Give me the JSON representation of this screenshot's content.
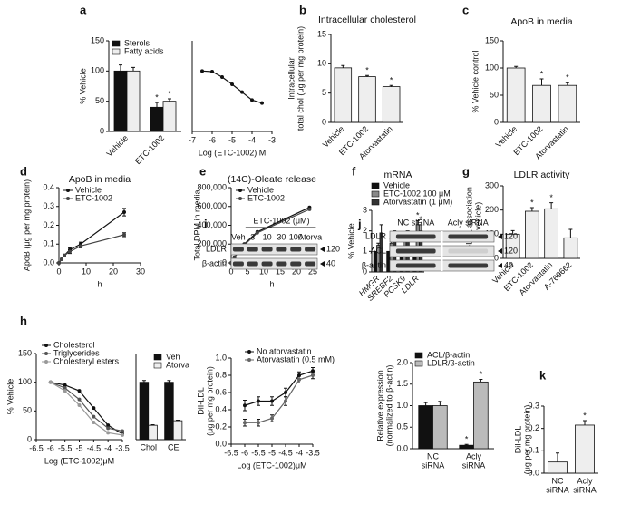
{
  "chart_data": [
    {
      "panel": "a",
      "type": "bar",
      "ylabel": "% Vehicle",
      "categories": [
        "Vehicle",
        "ETC-1002"
      ],
      "series": [
        {
          "name": "Sterols",
          "color": "#111111",
          "values": [
            100,
            40
          ],
          "errors": [
            10,
            8
          ],
          "labels": [
            null,
            "*"
          ]
        },
        {
          "name": "Fatty acids",
          "color": "#eeeeee",
          "values": [
            100,
            50
          ],
          "errors": [
            6,
            4
          ],
          "labels": [
            null,
            "*"
          ]
        }
      ],
      "ylim": [
        0,
        150
      ],
      "yticks": [
        0,
        50,
        100,
        150
      ],
      "legend": "top-left"
    },
    {
      "type": "line",
      "xlabel": "Log (ETC-1002) M",
      "x": [
        -6.5,
        -6,
        -5.5,
        -5,
        -4.5,
        -4,
        -3.5
      ],
      "series": [
        {
          "color": "#111111",
          "values": [
            100,
            99,
            90,
            78,
            65,
            52,
            47
          ]
        }
      ],
      "xlim": [
        -7,
        -3
      ],
      "xticks": [
        -7,
        -6,
        -5,
        -4,
        -3
      ],
      "ylim": [
        0,
        150
      ]
    },
    {
      "panel": "b",
      "type": "bar",
      "title": "Intracellular cholesterol",
      "ylabel": [
        "Intracellular",
        "total chol (μg per mg protein)"
      ],
      "categories": [
        "Vehicle",
        "ETC-1002",
        "Atorvastatin"
      ],
      "values": [
        9.3,
        7.8,
        6.1
      ],
      "errors": [
        0.4,
        0.2,
        0.2
      ],
      "labels": [
        null,
        "*",
        "*"
      ],
      "color": "#eeeeee",
      "ylim": [
        0,
        15
      ],
      "yticks": [
        0,
        5,
        10,
        15
      ]
    },
    {
      "panel": "c",
      "type": "bar",
      "title": "ApoB in media",
      "ylabel": "% Vehicle control",
      "categories": [
        "Vehicle",
        "ETC-1002",
        "Atorvastatin"
      ],
      "values": [
        100,
        68,
        68
      ],
      "errors": [
        3,
        12,
        5
      ],
      "labels": [
        null,
        "*",
        "*"
      ],
      "color": "#eeeeee",
      "ylim": [
        0,
        150
      ],
      "yticks": [
        0,
        50,
        100,
        150
      ]
    },
    {
      "panel": "d",
      "type": "line",
      "title": "ApoB in media",
      "ylabel": "ApoB (μg per mg protein)",
      "xlabel": "h",
      "x": [
        0,
        1,
        2,
        4,
        8,
        24
      ],
      "series": [
        {
          "name": "Vehicle",
          "color": "#111111",
          "values": [
            0,
            0.02,
            0.04,
            0.07,
            0.1,
            0.27
          ],
          "errors": [
            0,
            0,
            0,
            0.01,
            0.01,
            0.02
          ]
        },
        {
          "name": "ETC-1002",
          "color": "#444444",
          "values": [
            0,
            0.02,
            0.04,
            0.06,
            0.09,
            0.15
          ],
          "errors": [
            0,
            0,
            0,
            0.01,
            0.01,
            0.01
          ]
        }
      ],
      "xlim": [
        0,
        30
      ],
      "xticks": [
        0,
        10,
        20,
        30
      ],
      "ylim": [
        0,
        0.4
      ],
      "yticks": [
        {
          "value": 0,
          "label": "0.0"
        },
        0.1,
        0.2,
        0.3,
        0.4
      ],
      "legend": "top-left"
    },
    {
      "panel": "e",
      "type": "line",
      "title": "(14C)-Oleate release",
      "ylabel": "Total DPM in media",
      "xlabel": "h",
      "x": [
        0,
        1,
        2,
        4,
        8,
        24
      ],
      "series": [
        {
          "name": "Vehicle",
          "color": "#111111",
          "values": [
            0,
            60000,
            110000,
            200000,
            330000,
            590000
          ]
        },
        {
          "name": "ETC-1002",
          "color": "#444444",
          "values": [
            0,
            55000,
            105000,
            190000,
            320000,
            570000
          ]
        }
      ],
      "xlim": [
        0,
        25
      ],
      "xticks": [
        0,
        5,
        10,
        15,
        20,
        25
      ],
      "ylim": [
        0,
        800000
      ],
      "yticks": [
        0,
        {
          "value": 200000,
          "label": "200,000"
        },
        {
          "value": 400000,
          "label": "400,000"
        },
        {
          "value": 600000,
          "label": "600,000"
        },
        {
          "value": 800000,
          "label": "800,000"
        }
      ],
      "legend": "top-left"
    },
    {
      "panel": "f",
      "type": "bar",
      "title": "mRNA",
      "ylabel": "% Vehicle",
      "categories": [
        "HMGR",
        "SREBF2",
        "PCSK9",
        "LDLR"
      ],
      "italic_categories": true,
      "series": [
        {
          "name": "Vehicle",
          "color": "#111111",
          "values": [
            1,
            1,
            1,
            1
          ]
        },
        {
          "name": "ETC-1002 100 μM",
          "color": "#888888",
          "values": [
            1.3,
            1.4,
            1.5,
            2.3
          ],
          "errors": [
            0.1,
            0.2,
            0.2,
            0.2
          ],
          "labels": [
            null,
            null,
            null,
            "*"
          ]
        },
        {
          "name": "Atorvastatin (1 μM)",
          "color": "#333333",
          "values": [
            1.9,
            1.7,
            1.7,
            2.0
          ],
          "errors": [
            0.4,
            0.3,
            0.3,
            0.3
          ],
          "labels": [
            null,
            null,
            null,
            "*"
          ]
        }
      ],
      "ylim": [
        0,
        3
      ],
      "yticks": [
        0,
        1,
        2,
        3
      ],
      "legend": "top-left"
    },
    {
      "panel": "g",
      "type": "bar",
      "title": "LDLR activity",
      "ylabel": [
        "DiI-LDL association",
        "(% vehicle)"
      ],
      "categories": [
        "Vehicle",
        "ETC-1002",
        "Atorvastatin",
        "A-769662"
      ],
      "values": [
        100,
        195,
        205,
        85
      ],
      "errors": [
        15,
        15,
        25,
        35
      ],
      "labels": [
        null,
        "*",
        "*",
        null
      ],
      "color": "#eeeeee",
      "ylim": [
        0,
        300
      ],
      "yticks": [
        0,
        100,
        200,
        300
      ]
    },
    {
      "panel": "h",
      "type": "line",
      "ylabel": "% Vehicle",
      "xlabel": "Log (ETC-1002)μM",
      "x": [
        -6,
        -5.5,
        -5,
        -4.5,
        -4,
        -3.5
      ],
      "series": [
        {
          "name": "Cholesterol",
          "color": "#111111",
          "values": [
            100,
            95,
            85,
            55,
            25,
            10
          ]
        },
        {
          "name": "Triglycerides",
          "color": "#555555",
          "values": [
            100,
            90,
            70,
            40,
            20,
            15
          ]
        },
        {
          "name": "Cholesteryl esters",
          "color": "#999999",
          "values": [
            100,
            85,
            60,
            30,
            12,
            8
          ]
        }
      ],
      "xlim": [
        -6.5,
        -3.5
      ],
      "xticks": [
        -6.5,
        -6,
        -5.5,
        -5,
        -4.5,
        -4,
        -3.5
      ],
      "ylim": [
        0,
        150
      ],
      "yticks": [
        0,
        50,
        100,
        150
      ],
      "legend": "top-left"
    },
    {
      "type": "bar",
      "categories": [
        "Chol",
        "CE"
      ],
      "series": [
        {
          "name": "Veh",
          "color": "#111111",
          "values": [
            100,
            100
          ],
          "errors": [
            3,
            3
          ]
        },
        {
          "name": "Atorva",
          "color": "#eeeeee",
          "values": [
            25,
            33
          ],
          "errors": [
            1,
            1
          ]
        }
      ],
      "ylim": [
        0,
        150
      ],
      "legend": "top-right"
    },
    {
      "type": "line",
      "ylabel": [
        "DiI-LDL",
        "(μg per mg protein)"
      ],
      "xlabel": "Log (ETC-1002)μM",
      "x": [
        -6,
        -5.5,
        -5,
        -4.5,
        -4,
        -3.5
      ],
      "series": [
        {
          "name": "No atorvastatin",
          "color": "#111111",
          "values": [
            0.45,
            0.5,
            0.5,
            0.6,
            0.8,
            0.85
          ],
          "errors": [
            0.06,
            0.05,
            0.05,
            0.05,
            0.04,
            0.04
          ]
        },
        {
          "name": "Atorvastatin (0.5 mM)",
          "color": "#666666",
          "values": [
            0.25,
            0.25,
            0.3,
            0.5,
            0.75,
            0.8
          ],
          "errors": [
            0.04,
            0.04,
            0.04,
            0.05,
            0.04,
            0.04
          ]
        }
      ],
      "xlim": [
        -6.5,
        -3.5
      ],
      "xticks": [
        -6.5,
        -6,
        -5.5,
        -5,
        -4.5,
        -4,
        -3.5
      ],
      "ylim": [
        0,
        1
      ],
      "yticks": [
        {
          "value": 0,
          "label": "0.0"
        },
        0.2,
        0.4,
        0.6,
        0.8,
        {
          "value": 1,
          "label": "1.0"
        }
      ],
      "legend": "top-left"
    },
    {
      "type": "bar",
      "ylabel": [
        "Relative expression",
        "(normalized to β-actin)"
      ],
      "categories": [
        [
          "NC",
          "siRNA"
        ],
        [
          "Acly",
          "siRNA"
        ]
      ],
      "series": [
        {
          "name": "ACL/β-actin",
          "color": "#111111",
          "values": [
            1.0,
            0.08
          ],
          "errors": [
            0.07,
            0.02
          ],
          "labels": [
            null,
            "*"
          ]
        },
        {
          "name": "LDLR/β-actin",
          "color": "#bbbbbb",
          "values": [
            1.0,
            1.55
          ],
          "errors": [
            0.1,
            0.06
          ],
          "labels": [
            null,
            "*"
          ]
        }
      ],
      "ylim": [
        0,
        2
      ],
      "yticks": [
        {
          "value": 0,
          "label": "0.0"
        },
        0.5,
        {
          "value": 1,
          "label": "1.0"
        },
        1.5,
        {
          "value": 2,
          "label": "2.0"
        }
      ],
      "legend": "top-left"
    },
    {
      "panel": "k",
      "type": "bar",
      "ylabel": [
        "DiI-LDL",
        "(μg per mg protein)"
      ],
      "categories": [
        [
          "NC",
          "siRNA"
        ],
        [
          "Acly",
          "siRNA"
        ]
      ],
      "values": [
        0.05,
        0.215
      ],
      "errors": [
        0.04,
        0.02
      ],
      "labels": [
        null,
        "*"
      ],
      "color": "#eeeeee",
      "ylim": [
        0,
        0.3
      ],
      "yticks": [
        {
          "value": 0,
          "label": "0.0"
        },
        0.1,
        0.2,
        0.3
      ]
    }
  ],
  "blots": [
    {
      "panel": "i",
      "header": "ETC-1002 (μM)",
      "lanes": [
        "Veh",
        "3",
        "10",
        "30",
        "100",
        "Atorva"
      ],
      "rows": [
        "LDLR",
        "β-actin"
      ],
      "markers": [
        "120",
        "40"
      ]
    },
    {
      "panel": "j",
      "lanes": [
        "NC siRNA",
        "Acly siRNA"
      ],
      "rows": [
        "LDLR",
        "ACL",
        "β-actin"
      ],
      "markers": [
        "120",
        "120",
        "40"
      ]
    }
  ]
}
